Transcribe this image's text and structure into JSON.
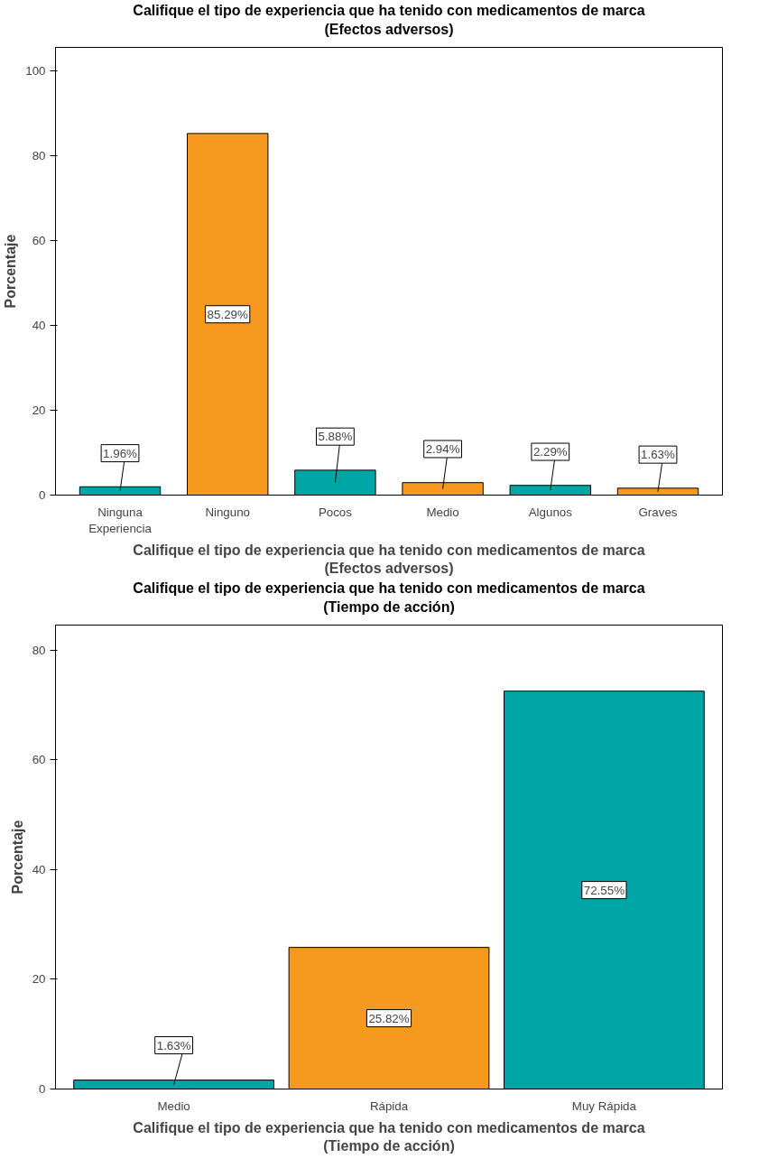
{
  "chart_data": [
    {
      "type": "bar",
      "title": "Califique el tipo de experiencia que ha tenido con medicamentos de marca\n(Efectos adversos)",
      "xlabel": "Califique el tipo de experiencia que ha tenido con medicamentos de marca\n(Efectos adversos)",
      "ylabel": "Porcentaje",
      "categories": [
        "Ninguna Experiencia",
        "Ninguno",
        "Pocos",
        "Medio",
        "Algunos",
        "Graves"
      ],
      "values": [
        1.96,
        85.29,
        5.88,
        2.94,
        2.29,
        1.63
      ],
      "colors": [
        "#00a6a6",
        "#f7991f",
        "#00a6a6",
        "#f7991f",
        "#00a6a6",
        "#f7991f"
      ],
      "value_labels": [
        "1.96%",
        "85.29%",
        "5.88%",
        "2.94%",
        "2.29%",
        "1.63%"
      ],
      "ylim": [
        0,
        105.6
      ],
      "yticks": [
        0,
        20,
        40,
        60,
        80,
        100
      ],
      "grid": false
    },
    {
      "type": "bar",
      "title": "Califique el tipo de experiencia que ha tenido con medicamentos de marca\n(Tiempo de acción)",
      "xlabel": "Califique el tipo de experiencia que ha tenido con medicamentos de marca\n(Tiempo de acción)",
      "ylabel": "Porcentaje",
      "categories": [
        "Medio",
        "Rápida",
        "Muy Rápida"
      ],
      "values": [
        1.63,
        25.82,
        72.55
      ],
      "colors": [
        "#00a6a6",
        "#f7991f",
        "#00a6a6"
      ],
      "value_labels": [
        "1.63%",
        "25.82%",
        "72.55%"
      ],
      "ylim": [
        0,
        84.6
      ],
      "yticks": [
        0,
        20,
        40,
        60,
        80
      ],
      "grid": false
    }
  ]
}
